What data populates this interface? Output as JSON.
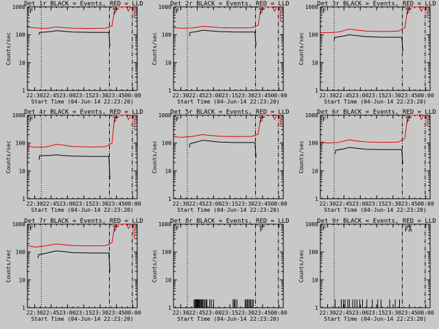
{
  "window": {
    "background": "#c8c8c8",
    "ink": "#000000",
    "lld_color": "#e00000"
  },
  "common": {
    "ylabel": "Counts/sec",
    "xlabel": "Start Time (04-Jun-14 22:23:20)",
    "xticks": [
      "22:30",
      "22:45",
      "23:00",
      "23:15",
      "23:30",
      "23:45",
      "00:00"
    ],
    "yticks": [
      "1",
      "10",
      "100",
      "1000"
    ]
  },
  "chart_data": [
    {
      "type": "line",
      "title": "Det 1r BLACK = Events, RED = LLD",
      "marker": "F",
      "yscale": "log",
      "ylim": [
        1,
        1000
      ],
      "xlim": [
        "22:23:20",
        "00:04:00"
      ],
      "series": [
        {
          "color": "#e00000",
          "points": [
            [
              "22:23:20",
              190
            ],
            [
              "22:30",
              175
            ],
            [
              "22:40",
              168
            ],
            [
              "22:45",
              178
            ],
            [
              "22:50",
              190
            ],
            [
              "22:55",
              182
            ],
            [
              "23:05",
              170
            ],
            [
              "23:20",
              168
            ],
            [
              "23:35",
              172
            ],
            [
              "23:41",
              210
            ],
            [
              "23:43",
              700
            ],
            [
              "23:44",
              1000
            ],
            [
              "23:49",
              1000
            ],
            [
              "23:54",
              1000
            ],
            [
              "23:56",
              700
            ],
            [
              "23:58",
              1000
            ],
            [
              "00:01",
              1000
            ],
            [
              "00:01:30",
              400
            ]
          ]
        },
        {
          "color": "#000000",
          "points": [
            [
              "22:34",
              100
            ],
            [
              "22:34:30",
              120
            ],
            [
              "22:40",
              125
            ],
            [
              "22:45",
              130
            ],
            [
              "22:50",
              140
            ],
            [
              "22:55",
              135
            ],
            [
              "23:05",
              125
            ],
            [
              "23:20",
              122
            ],
            [
              "23:38",
              122
            ],
            [
              "23:39",
              40
            ]
          ]
        }
      ]
    },
    {
      "type": "line",
      "title": "Det 2r BLACK = Events, RED = LLD",
      "marker": "F",
      "yscale": "log",
      "ylim": [
        1,
        1000
      ],
      "xlim": [
        "22:23:20",
        "00:04:00"
      ],
      "series": [
        {
          "color": "#e00000",
          "points": [
            [
              "22:23:20",
              180
            ],
            [
              "22:30",
              170
            ],
            [
              "22:40",
              175
            ],
            [
              "22:45",
              185
            ],
            [
              "22:50",
              200
            ],
            [
              "22:55",
              195
            ],
            [
              "23:05",
              180
            ],
            [
              "23:20",
              175
            ],
            [
              "23:35",
              178
            ],
            [
              "23:41",
              220
            ],
            [
              "23:43",
              700
            ],
            [
              "23:44",
              1000
            ],
            [
              "23:49",
              1000
            ],
            [
              "23:54",
              1000
            ],
            [
              "23:56",
              700
            ],
            [
              "23:58",
              1000
            ],
            [
              "00:01",
              1000
            ],
            [
              "00:01:30",
              300
            ]
          ]
        },
        {
          "color": "#000000",
          "points": [
            [
              "22:38",
              90
            ],
            [
              "22:38:30",
              120
            ],
            [
              "22:45",
              130
            ],
            [
              "22:50",
              145
            ],
            [
              "22:55",
              140
            ],
            [
              "23:05",
              130
            ],
            [
              "23:20",
              125
            ],
            [
              "23:38",
              125
            ],
            [
              "23:39",
              40
            ]
          ]
        }
      ]
    },
    {
      "type": "line",
      "title": "Det 3r BLACK = Events, RED = LLD",
      "marker": "F",
      "yscale": "log",
      "ylim": [
        1,
        1000
      ],
      "xlim": [
        "22:23:20",
        "00:04:00"
      ],
      "series": [
        {
          "color": "#e00000",
          "points": [
            [
              "22:23:20",
              120
            ],
            [
              "22:30",
              118
            ],
            [
              "22:40",
              125
            ],
            [
              "22:45",
              140
            ],
            [
              "22:50",
              160
            ],
            [
              "22:55",
              150
            ],
            [
              "23:05",
              135
            ],
            [
              "23:20",
              130
            ],
            [
              "23:35",
              135
            ],
            [
              "23:41",
              180
            ],
            [
              "23:43",
              700
            ],
            [
              "23:44",
              1000
            ],
            [
              "23:49",
              1000
            ],
            [
              "23:54",
              1000
            ],
            [
              "23:56",
              700
            ],
            [
              "23:58",
              1000
            ],
            [
              "00:01",
              1000
            ],
            [
              "00:01:30",
              400
            ]
          ]
        },
        {
          "color": "#000000",
          "points": [
            [
              "22:36",
              60
            ],
            [
              "22:36:30",
              80
            ],
            [
              "22:45",
              90
            ],
            [
              "22:50",
              100
            ],
            [
              "22:55",
              95
            ],
            [
              "23:05",
              85
            ],
            [
              "23:20",
              82
            ],
            [
              "23:38",
              82
            ],
            [
              "23:39",
              25
            ]
          ]
        }
      ]
    },
    {
      "type": "line",
      "title": "Det 4r BLACK = Events, RED = LLD",
      "marker": "F",
      "yscale": "log",
      "ylim": [
        1,
        1000
      ],
      "xlim": [
        "22:23:20",
        "00:04:00"
      ],
      "series": [
        {
          "color": "#e00000",
          "points": [
            [
              "22:23:20",
              80
            ],
            [
              "22:30",
              70
            ],
            [
              "22:40",
              72
            ],
            [
              "22:45",
              80
            ],
            [
              "22:50",
              90
            ],
            [
              "22:55",
              85
            ],
            [
              "23:05",
              75
            ],
            [
              "23:20",
              72
            ],
            [
              "23:35",
              74
            ],
            [
              "23:41",
              100
            ],
            [
              "23:43",
              700
            ],
            [
              "23:44",
              1000
            ],
            [
              "23:49",
              1000
            ],
            [
              "23:54",
              1000
            ],
            [
              "23:56",
              700
            ],
            [
              "23:58",
              1000
            ],
            [
              "00:01",
              1000
            ],
            [
              "00:01:30",
              300
            ]
          ]
        },
        {
          "color": "#000000",
          "points": [
            [
              "22:34",
              25
            ],
            [
              "22:34:30",
              35
            ],
            [
              "22:45",
              36
            ],
            [
              "22:50",
              38
            ],
            [
              "22:55",
              36
            ],
            [
              "23:05",
              34
            ],
            [
              "23:20",
              33
            ],
            [
              "23:38",
              33
            ],
            [
              "23:39",
              5
            ]
          ]
        }
      ]
    },
    {
      "type": "line",
      "title": "Det 5r BLACK = Events, RED = LLD",
      "marker": "F",
      "yscale": "log",
      "ylim": [
        1,
        1000
      ],
      "xlim": [
        "22:23:20",
        "00:04:00"
      ],
      "series": [
        {
          "color": "#e00000",
          "points": [
            [
              "22:23:20",
              170
            ],
            [
              "22:30",
              160
            ],
            [
              "22:40",
              170
            ],
            [
              "22:45",
              185
            ],
            [
              "22:50",
              200
            ],
            [
              "22:55",
              190
            ],
            [
              "23:05",
              175
            ],
            [
              "23:20",
              170
            ],
            [
              "23:35",
              172
            ],
            [
              "23:41",
              210
            ],
            [
              "23:43",
              700
            ],
            [
              "23:44",
              1000
            ],
            [
              "23:49",
              1000
            ],
            [
              "23:54",
              1000
            ],
            [
              "23:56",
              700
            ],
            [
              "23:58",
              1000
            ],
            [
              "00:01",
              1000
            ],
            [
              "00:01:30",
              400
            ]
          ]
        },
        {
          "color": "#000000",
          "points": [
            [
              "22:38",
              70
            ],
            [
              "22:38:30",
              95
            ],
            [
              "22:45",
              110
            ],
            [
              "22:50",
              125
            ],
            [
              "22:55",
              120
            ],
            [
              "23:05",
              108
            ],
            [
              "23:20",
              104
            ],
            [
              "23:38",
              104
            ],
            [
              "23:39",
              30
            ]
          ]
        }
      ]
    },
    {
      "type": "line",
      "title": "Det 6r BLACK = Events, RED = LLD",
      "marker": "F",
      "yscale": "log",
      "ylim": [
        1,
        1000
      ],
      "xlim": [
        "22:23:20",
        "00:04:00"
      ],
      "series": [
        {
          "color": "#e00000",
          "points": [
            [
              "22:23:20",
              110
            ],
            [
              "22:30",
              100
            ],
            [
              "22:40",
              105
            ],
            [
              "22:45",
              118
            ],
            [
              "22:50",
              130
            ],
            [
              "22:55",
              120
            ],
            [
              "23:05",
              110
            ],
            [
              "23:20",
              105
            ],
            [
              "23:35",
              108
            ],
            [
              "23:41",
              150
            ],
            [
              "23:43",
              700
            ],
            [
              "23:44",
              1000
            ],
            [
              "23:49",
              1000
            ],
            [
              "23:54",
              1000
            ],
            [
              "23:56",
              700
            ],
            [
              "23:58",
              1000
            ],
            [
              "00:01",
              1000
            ],
            [
              "00:01:30",
              400
            ]
          ]
        },
        {
          "color": "#000000",
          "points": [
            [
              "22:37",
              40
            ],
            [
              "22:37:30",
              55
            ],
            [
              "22:45",
              62
            ],
            [
              "22:50",
              70
            ],
            [
              "22:55",
              66
            ],
            [
              "23:05",
              60
            ],
            [
              "23:20",
              58
            ],
            [
              "23:38",
              58
            ],
            [
              "23:39",
              18
            ]
          ]
        }
      ]
    },
    {
      "type": "line",
      "title": "Det 7r BLACK = Events, RED = LLD",
      "marker": "F",
      "yscale": "log",
      "ylim": [
        1,
        1000
      ],
      "xlim": [
        "22:23:20",
        "00:04:00"
      ],
      "series": [
        {
          "color": "#e00000",
          "points": [
            [
              "22:23:20",
              170
            ],
            [
              "22:30",
              150
            ],
            [
              "22:40",
              165
            ],
            [
              "22:45",
              180
            ],
            [
              "22:50",
              195
            ],
            [
              "22:55",
              185
            ],
            [
              "23:05",
              170
            ],
            [
              "23:20",
              165
            ],
            [
              "23:35",
              168
            ],
            [
              "23:41",
              220
            ],
            [
              "23:43",
              700
            ],
            [
              "23:44",
              1000
            ],
            [
              "23:49",
              1000
            ],
            [
              "23:54",
              1000
            ],
            [
              "23:56",
              700
            ],
            [
              "23:58",
              1000
            ],
            [
              "00:01",
              1000
            ],
            [
              "00:01:30",
              300
            ]
          ]
        },
        {
          "color": "#000000",
          "points": [
            [
              "22:33",
              60
            ],
            [
              "22:33:30",
              80
            ],
            [
              "22:40",
              90
            ],
            [
              "22:45",
              100
            ],
            [
              "22:50",
              110
            ],
            [
              "22:55",
              105
            ],
            [
              "23:05",
              95
            ],
            [
              "23:20",
              92
            ],
            [
              "23:38",
              92
            ],
            [
              "23:39",
              20
            ]
          ]
        }
      ]
    },
    {
      "type": "line",
      "title": "Det 8r BLACK = Events, RED = LLD",
      "marker": "F",
      "yscale": "log",
      "ylim": [
        1,
        1000
      ],
      "xlim": [
        "22:23:20",
        "00:04:00"
      ],
      "series": [
        {
          "color": "#000000",
          "spikes": [
            "22:42:10",
            "22:43:00",
            "22:43:40",
            "22:44:20",
            "22:45:00",
            "22:45:40",
            "22:46:10",
            "22:47:00",
            "22:47:40",
            "22:48:30",
            "22:49:10",
            "22:50:00",
            "22:51:00",
            "22:52:00",
            "22:53:10",
            "22:54:00",
            "22:56:30",
            "22:58:00",
            "23:00:00",
            "23:18:00",
            "23:19:00",
            "23:20:00",
            "23:21:30",
            "23:29:00",
            "23:30:00",
            "23:31:00",
            "23:32:00",
            "23:33:10",
            "23:34:00",
            "23:35:20",
            "23:36:30"
          ],
          "spike_value": 2
        }
      ]
    },
    {
      "type": "line",
      "title": "Det 9r BLACK = Events, RED = LLD",
      "marker": "FA",
      "yscale": "log",
      "ylim": [
        1,
        1000
      ],
      "xlim": [
        "22:23:20",
        "00:04:00"
      ],
      "series": [
        {
          "color": "#000000",
          "spikes": [
            "22:37:00",
            "22:42:30",
            "22:44:30",
            "22:46:00",
            "22:48:30",
            "22:50:00",
            "22:53:00",
            "22:55:00",
            "22:57:00",
            "22:59:30",
            "23:02:00",
            "23:06:00",
            "23:11:00",
            "23:16:00",
            "23:19:00",
            "23:27:00",
            "23:32:00",
            "23:36:00"
          ],
          "spike_value": 2
        }
      ]
    }
  ]
}
